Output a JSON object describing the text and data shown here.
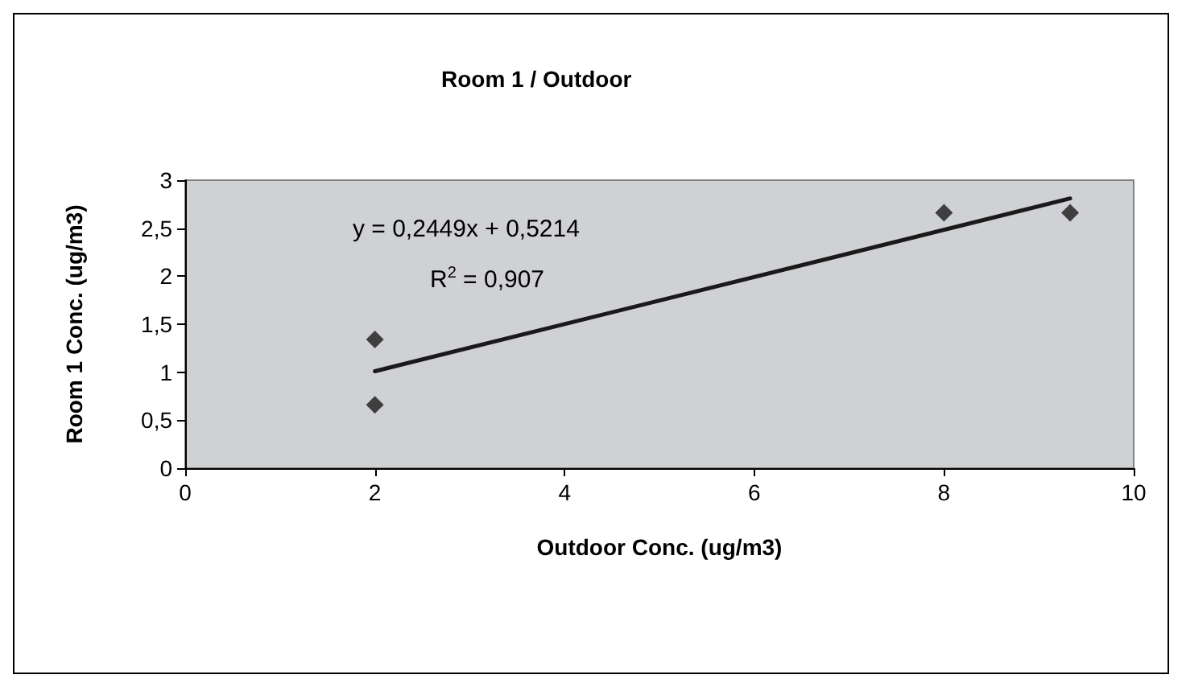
{
  "chart_data": {
    "type": "scatter",
    "title": "Room 1 / Outdoor",
    "xlabel": "Outdoor Conc. (ug/m3)",
    "ylabel": "Room 1 Conc. (ug/m3)",
    "x": [
      2,
      2,
      8,
      9.33
    ],
    "series": [
      {
        "color": "#1a1a1a",
        "values": [
          1.34,
          0.66,
          2.66,
          2.66
        ],
        "marker": "diamond"
      },
      {
        "type": "line",
        "color": "#1a1a1a",
        "x": [
          2,
          9.33
        ],
        "values": [
          1.01,
          2.81
        ],
        "marker": "none",
        "line_style": "solid"
      }
    ],
    "xlim": [
      0,
      10
    ],
    "xticks": [
      0,
      2,
      4,
      6,
      8,
      10
    ],
    "ylim": [
      0,
      3
    ],
    "yticks": [
      0,
      {
        "value": 0.5,
        "label": "0,5"
      },
      1,
      {
        "value": 1.5,
        "label": "1,5"
      },
      2,
      {
        "value": 2.5,
        "label": "2,5"
      },
      3
    ],
    "annotations": [
      "y = 0,2449x + 0,5214",
      "R$^{2}$ = 0,907"
    ],
    "grid": false
  }
}
